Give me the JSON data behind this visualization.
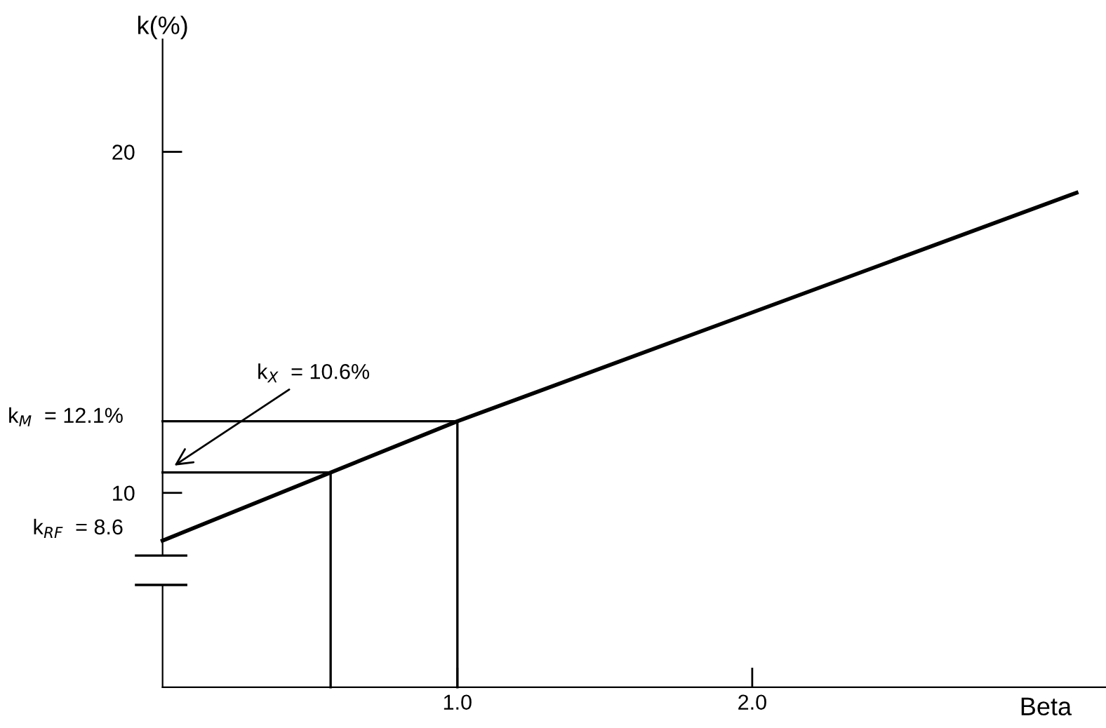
{
  "chart_data": {
    "type": "line",
    "xlabel": "Beta",
    "ylabel": "k(%)",
    "xlim": [
      0,
      3.2
    ],
    "ylim": [
      4.3,
      23.3
    ],
    "xticks": [
      {
        "value": 1,
        "label": "1.0"
      },
      {
        "value": 2,
        "label": "2.0"
      }
    ],
    "yticks": [
      10,
      20
    ],
    "series": [
      {
        "color": "#000000",
        "x": [
          0,
          1.0,
          3.1
        ],
        "values": [
          8.6,
          12.1,
          18.8
        ]
      },
      {
        "color": "#000000",
        "x": [
          0,
          0.57,
          0.57
        ],
        "values": [
          10.6,
          10.6,
          4.3
        ]
      },
      {
        "color": "#000000",
        "x": [
          0,
          1.0,
          1.0
        ],
        "values": [
          12.1,
          12.1,
          4.3
        ]
      }
    ],
    "annotations": [
      "k$_{M}$  = 12.1%",
      "k$_{RF}$  = 8.6",
      "k$_{X}$  = 10.6%"
    ],
    "grid": false,
    "legend": false,
    "marker": "none",
    "line_style": "solid"
  }
}
